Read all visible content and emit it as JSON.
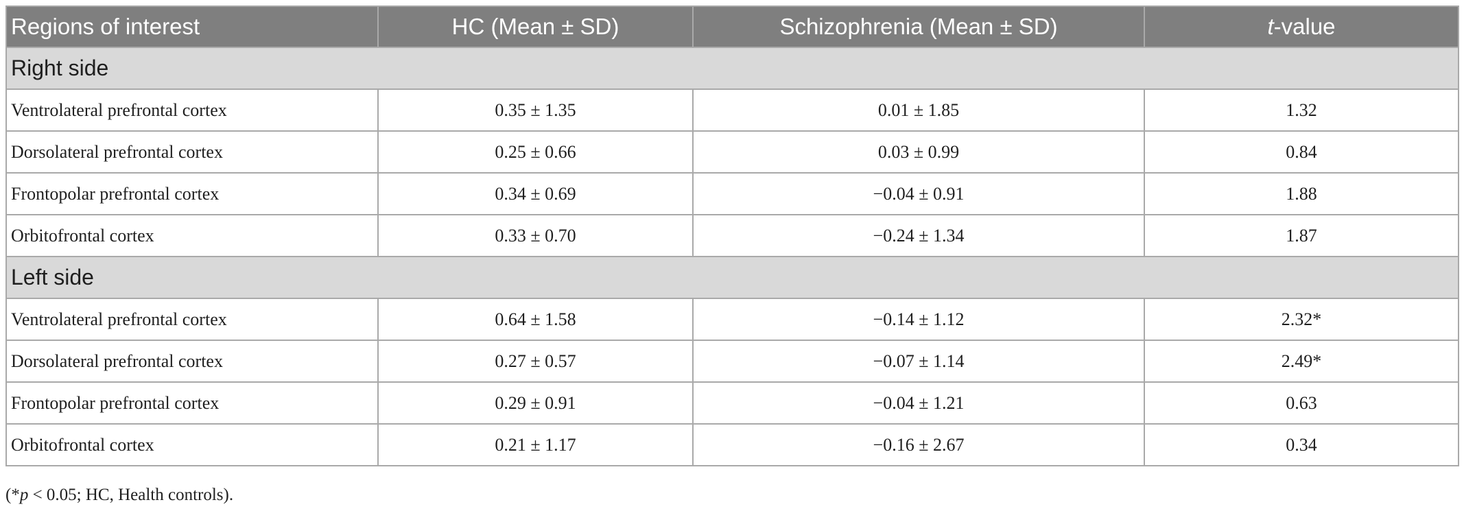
{
  "table": {
    "headers": [
      "Regions of interest",
      "HC (Mean ± SD)",
      "Schizophrenia (Mean ± SD)",
      "-value"
    ],
    "t_prefix": "t",
    "sections": [
      {
        "title": "Right side",
        "rows": [
          {
            "region": "Ventrolateral prefrontal cortex",
            "hc": "0.35 ± 1.35",
            "scz": "0.01 ± 1.85",
            "t": "1.32"
          },
          {
            "region": "Dorsolateral prefrontal cortex",
            "hc": "0.25 ± 0.66",
            "scz": "0.03 ± 0.99",
            "t": "0.84"
          },
          {
            "region": "Frontopolar prefrontal cortex",
            "hc": "0.34 ± 0.69",
            "scz": "−0.04 ± 0.91",
            "t": "1.88"
          },
          {
            "region": "Orbitofrontal cortex",
            "hc": "0.33 ± 0.70",
            "scz": "−0.24 ± 1.34",
            "t": "1.87"
          }
        ]
      },
      {
        "title": "Left side",
        "rows": [
          {
            "region": "Ventrolateral prefrontal cortex",
            "hc": "0.64 ± 1.58",
            "scz": "−0.14 ± 1.12",
            "t": "2.32*"
          },
          {
            "region": "Dorsolateral prefrontal cortex",
            "hc": "0.27 ± 0.57",
            "scz": "−0.07 ± 1.14",
            "t": "2.49*"
          },
          {
            "region": "Frontopolar prefrontal cortex",
            "hc": "0.29 ± 0.91",
            "scz": "−0.04 ± 1.21",
            "t": "0.63"
          },
          {
            "region": "Orbitofrontal cortex",
            "hc": "0.21 ± 1.17",
            "scz": "−0.16 ± 2.67",
            "t": "0.34"
          }
        ]
      }
    ]
  },
  "footnote": {
    "open": "(*",
    "p": "p",
    "rest": " < 0.05; HC, Health controls)."
  },
  "colors": {
    "header_bg": "#7f7f7f",
    "section_bg": "#d9d9d9",
    "border": "#a9a9a9"
  }
}
